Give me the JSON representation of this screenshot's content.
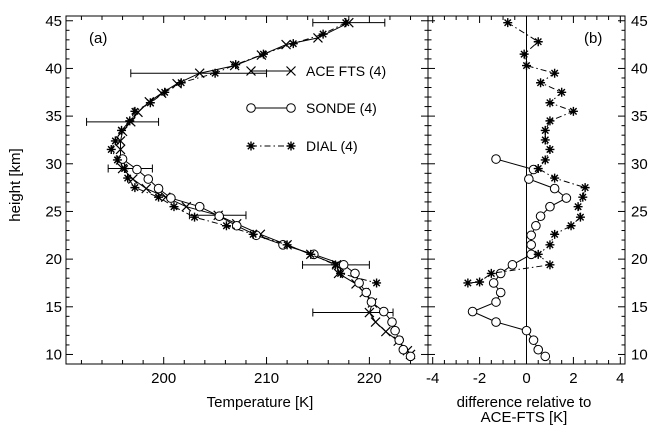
{
  "chart_data": [
    {
      "panel": "(a)",
      "type": "line",
      "xlabel": "Temperature [K]",
      "ylabel": "height [km]",
      "xlim": [
        190.5,
        225.7
      ],
      "ylim": [
        9,
        45.5
      ],
      "xticks": [
        200,
        210,
        220
      ],
      "yticks": [
        10,
        15,
        20,
        25,
        30,
        35,
        40,
        45
      ],
      "legend_position": "top-right",
      "series": [
        {
          "name": "ACE FTS (4)",
          "marker": "x",
          "line": "solid",
          "points": [
            [
              218.0,
              44.8
            ],
            [
              215.0,
              43.2
            ],
            [
              211.9,
              42.5
            ],
            [
              209.5,
              41.4
            ],
            [
              206.9,
              40.3
            ],
            [
              203.5,
              39.5
            ],
            [
              201.3,
              38.4
            ],
            [
              199.8,
              37.4
            ],
            [
              198.6,
              36.5
            ],
            [
              197.5,
              35.4
            ],
            [
              196.8,
              34.4
            ],
            [
              196.0,
              33.4
            ],
            [
              195.8,
              32.4
            ],
            [
              195.8,
              31.5
            ],
            [
              195.8,
              30.4
            ],
            [
              196.0,
              29.5
            ],
            [
              197.0,
              28.4
            ],
            [
              198.3,
              27.4
            ],
            [
              200.2,
              26.5
            ],
            [
              202.2,
              25.5
            ],
            [
              205.3,
              24.6
            ],
            [
              207.1,
              23.7
            ],
            [
              209.4,
              22.6
            ],
            [
              212.0,
              21.5
            ],
            [
              214.3,
              20.5
            ],
            [
              216.8,
              19.4
            ],
            [
              217.0,
              18.5
            ],
            [
              218.7,
              17.4
            ],
            [
              219.5,
              16.5
            ],
            [
              220.3,
              15.4
            ],
            [
              220.0,
              14.4
            ],
            [
              220.6,
              13.4
            ],
            [
              221.6,
              12.4
            ],
            [
              222.8,
              11.4
            ],
            [
              223.7,
              10.4
            ],
            [
              224.0,
              10.0
            ]
          ],
          "error_bars": [
            {
              "y": 44.8,
              "xmin": 214.5,
              "xmax": 221.5
            },
            {
              "y": 39.5,
              "xmin": 196.8,
              "xmax": 210.0
            },
            {
              "y": 34.4,
              "xmin": 192.5,
              "xmax": 199.5
            },
            {
              "y": 29.5,
              "xmin": 194.6,
              "xmax": 198.9
            },
            {
              "y": 24.6,
              "xmin": 202.5,
              "xmax": 208.0
            },
            {
              "y": 19.4,
              "xmin": 213.5,
              "xmax": 220.0
            },
            {
              "y": 14.4,
              "xmin": 214.5,
              "xmax": 222.3
            }
          ]
        },
        {
          "name": "SONDE (4)",
          "marker": "circle",
          "line": "solid",
          "points": [
            [
              196.0,
              30.5
            ],
            [
              197.4,
              29.4
            ],
            [
              198.5,
              28.4
            ],
            [
              199.5,
              27.4
            ],
            [
              200.7,
              26.4
            ],
            [
              203.5,
              25.5
            ],
            [
              205.4,
              24.5
            ],
            [
              207.1,
              23.5
            ],
            [
              209.0,
              22.5
            ],
            [
              211.6,
              21.5
            ],
            [
              214.6,
              20.5
            ],
            [
              217.5,
              19.4
            ],
            [
              218.6,
              18.5
            ],
            [
              219.0,
              17.5
            ],
            [
              219.7,
              16.5
            ],
            [
              220.2,
              15.5
            ],
            [
              221.4,
              14.5
            ],
            [
              222.2,
              13.4
            ],
            [
              222.5,
              12.5
            ],
            [
              222.9,
              11.5
            ],
            [
              223.3,
              10.5
            ],
            [
              224.0,
              9.8
            ]
          ]
        },
        {
          "name": "DIAL (4)",
          "marker": "asterisk",
          "line": "dash-dot",
          "points": [
            [
              217.7,
              44.8
            ],
            [
              215.5,
              43.6
            ],
            [
              212.6,
              42.6
            ],
            [
              209.7,
              41.5
            ],
            [
              207.0,
              40.4
            ],
            [
              205.0,
              39.5
            ],
            [
              201.7,
              38.5
            ],
            [
              200.1,
              37.5
            ],
            [
              198.7,
              36.4
            ],
            [
              197.2,
              35.5
            ],
            [
              196.7,
              34.5
            ],
            [
              195.9,
              33.5
            ],
            [
              195.3,
              32.4
            ],
            [
              194.9,
              31.5
            ],
            [
              195.5,
              30.4
            ],
            [
              196.2,
              29.5
            ],
            [
              196.5,
              28.5
            ],
            [
              197.2,
              27.5
            ],
            [
              199.5,
              26.5
            ],
            [
              201.0,
              25.5
            ],
            [
              203.0,
              24.4
            ],
            [
              206.1,
              23.5
            ],
            [
              208.7,
              22.6
            ],
            [
              212.0,
              21.5
            ],
            [
              214.3,
              20.5
            ],
            [
              216.7,
              19.4
            ],
            [
              217.2,
              18.5
            ],
            [
              220.7,
              17.5
            ]
          ]
        }
      ]
    },
    {
      "panel": "(b)",
      "type": "line",
      "xlabel": "difference relative to ACE-FTS [K]",
      "xlabel_lines": [
        "difference relative to",
        "ACE-FTS [K]"
      ],
      "ylabel": "height [km]",
      "xlim": [
        -4.2,
        4.2
      ],
      "ylim": [
        9,
        45.5
      ],
      "xticks": [
        -4,
        -2,
        0,
        2,
        4
      ],
      "yticks": [
        10,
        15,
        20,
        25,
        30,
        35,
        40,
        45
      ],
      "zero_line": true,
      "series": [
        {
          "name": "SONDE (4)",
          "marker": "circle",
          "line": "solid",
          "points": [
            [
              -1.3,
              30.5
            ],
            [
              0.3,
              29.4
            ],
            [
              0.1,
              28.4
            ],
            [
              1.2,
              27.4
            ],
            [
              1.7,
              26.4
            ],
            [
              1.0,
              25.5
            ],
            [
              0.6,
              24.5
            ],
            [
              0.4,
              23.5
            ],
            [
              0.2,
              22.5
            ],
            [
              0.2,
              21.5
            ],
            [
              0.2,
              20.5
            ],
            [
              -0.6,
              19.4
            ],
            [
              -1.1,
              18.5
            ],
            [
              -1.4,
              17.5
            ],
            [
              -1.1,
              16.5
            ],
            [
              -1.3,
              15.5
            ],
            [
              -2.3,
              14.5
            ],
            [
              -1.3,
              13.4
            ],
            [
              0.0,
              12.5
            ],
            [
              0.3,
              11.5
            ],
            [
              0.5,
              10.5
            ],
            [
              0.8,
              9.8
            ]
          ]
        },
        {
          "name": "DIAL (4)",
          "marker": "asterisk",
          "line": "dash-dot",
          "points": [
            [
              -0.8,
              44.8
            ],
            [
              0.5,
              42.8
            ],
            [
              -0.1,
              41.5
            ],
            [
              0.0,
              40.3
            ],
            [
              1.2,
              39.5
            ],
            [
              0.6,
              38.5
            ],
            [
              1.5,
              37.5
            ],
            [
              1.0,
              36.4
            ],
            [
              2.0,
              35.5
            ],
            [
              1.0,
              34.5
            ],
            [
              0.8,
              33.5
            ],
            [
              0.8,
              32.5
            ],
            [
              1.0,
              31.5
            ],
            [
              0.8,
              30.4
            ],
            [
              0.5,
              29.5
            ],
            [
              1.2,
              28.5
            ],
            [
              2.5,
              27.5
            ],
            [
              2.4,
              26.5
            ],
            [
              2.2,
              25.5
            ],
            [
              2.3,
              24.4
            ],
            [
              1.9,
              23.5
            ],
            [
              1.2,
              22.6
            ],
            [
              1.0,
              21.5
            ],
            [
              0.5,
              20.5
            ],
            [
              1.0,
              19.4
            ],
            [
              -1.5,
              18.5
            ],
            [
              -2.0,
              17.6
            ],
            [
              -2.5,
              17.5
            ]
          ]
        }
      ]
    }
  ]
}
